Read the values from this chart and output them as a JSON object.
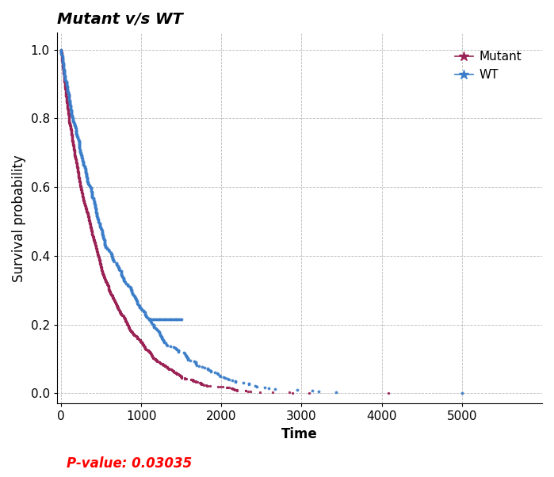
{
  "title": "Mutant v/s WT",
  "xlabel": "Time",
  "ylabel": "Survival probability",
  "xlim": [
    -50,
    6000
  ],
  "ylim": [
    -0.03,
    1.05
  ],
  "xticks": [
    0,
    1000,
    2000,
    3000,
    4000,
    5000
  ],
  "yticks": [
    0.0,
    0.2,
    0.4,
    0.6,
    0.8,
    1.0
  ],
  "mutant_color": "#9B2255",
  "wt_color": "#3A7DC9",
  "pvalue_text": "P-value: 0.03035",
  "pvalue_color": "#FF0000",
  "background_color": "#FFFFFF",
  "grid_color": "#BBBBBB",
  "legend_labels": [
    "Mutant",
    "WT"
  ],
  "title_fontsize": 14,
  "axis_label_fontsize": 12,
  "tick_fontsize": 11,
  "legend_fontsize": 11,
  "mutant_scale": 500,
  "mutant_n": 1200,
  "wt_scale": 700,
  "wt_n": 400,
  "mutant_seed": 42,
  "wt_seed": 7
}
